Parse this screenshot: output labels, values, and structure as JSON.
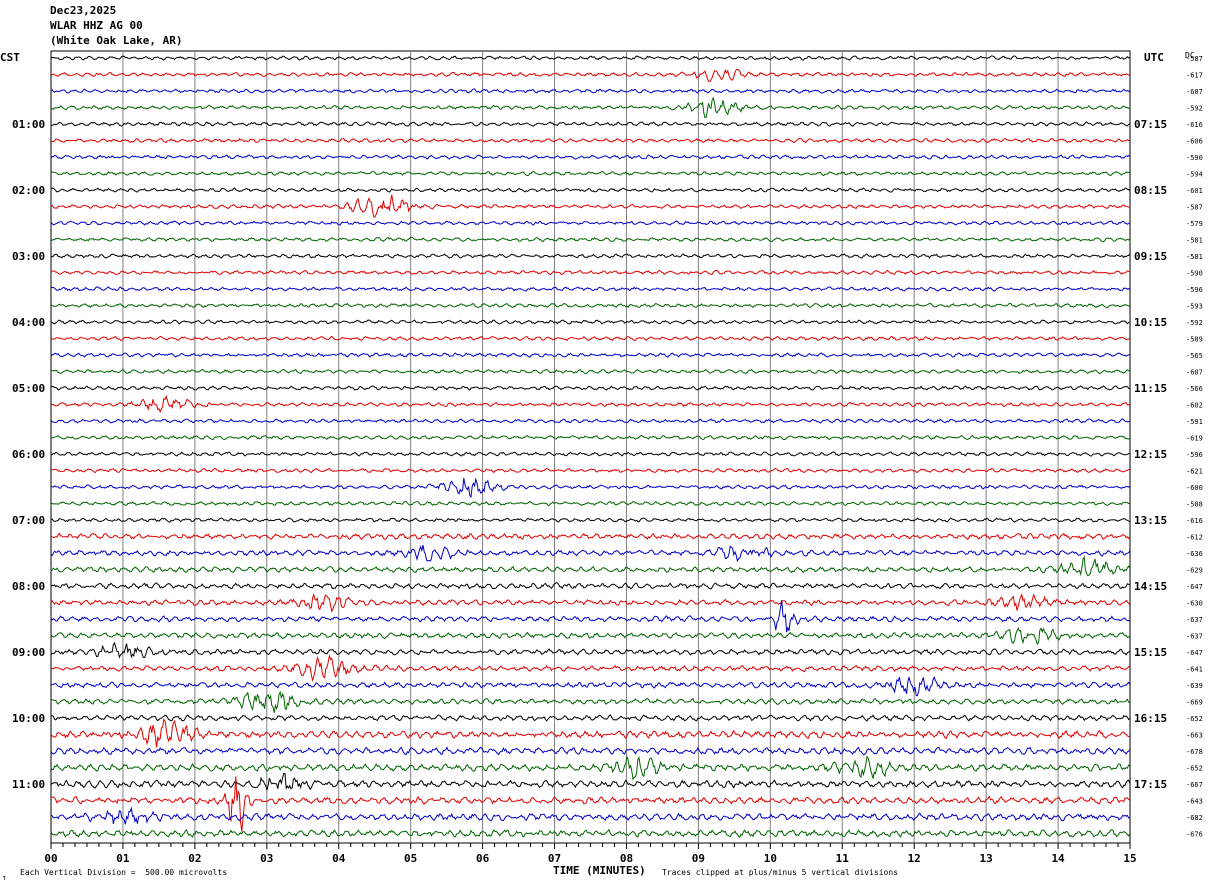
{
  "header": {
    "date": "Dec23,2025",
    "station": "WLAR HHZ AG 00",
    "location": "(White Oak Lake, AR)"
  },
  "left_axis_label": "CST",
  "right_axis_label": "UTC",
  "dc_label": "DC",
  "footer": {
    "scale_note": "Each Vertical Division =  500.00 microvolts",
    "clip_note": "Traces clipped at plus/minus 5 vertical divisions",
    "corner_mark": "↑"
  },
  "colors": {
    "black": "#000000",
    "red": "#e00000",
    "blue": "#0000c8",
    "green": "#006400",
    "grid": "#808080"
  },
  "chart_data": {
    "type": "line",
    "title": "",
    "xlabel": "TIME (MINUTES)",
    "ylabel": "",
    "x_ticks": [
      "00",
      "01",
      "02",
      "03",
      "04",
      "05",
      "06",
      "07",
      "08",
      "09",
      "10",
      "11",
      "12",
      "13",
      "14",
      "15"
    ],
    "x_range": [
      0,
      15
    ],
    "trace_color_cycle": [
      "black",
      "red",
      "blue",
      "green"
    ],
    "left_hour_labels": [
      "01:00",
      "02:00",
      "03:00",
      "04:00",
      "05:00",
      "06:00",
      "07:00",
      "08:00",
      "09:00",
      "10:00",
      "11:00"
    ],
    "right_hour_labels": [
      "07:15",
      "08:15",
      "09:15",
      "10:15",
      "11:15",
      "12:15",
      "13:15",
      "14:15",
      "15:15",
      "16:15",
      "17:15"
    ],
    "dc_offsets": [
      "-587",
      "-617",
      "-607",
      "-592",
      "-616",
      "-606",
      "-590",
      "-594",
      "-601",
      "-587",
      "-579",
      "-581",
      "-581",
      "-590",
      "-596",
      "-593",
      "-592",
      "-589",
      "-565",
      "-607",
      "-566",
      "-602",
      "-591",
      "-619",
      "-596",
      "-621",
      "-600",
      "-588",
      "-616",
      "-612",
      "-636",
      "-629",
      "-647",
      "-630",
      "-637",
      "-637",
      "-647",
      "-641",
      "-639",
      "-669",
      "-652",
      "-663",
      "-678",
      "-652",
      "-667",
      "-643",
      "-682",
      "-676"
    ],
    "events": [
      {
        "trace": 1,
        "minute": 9.3,
        "amp": 4
      },
      {
        "trace": 3,
        "minute": 9.2,
        "amp": 7
      },
      {
        "trace": 9,
        "minute": 4.6,
        "amp": 9
      },
      {
        "trace": 21,
        "minute": 1.6,
        "amp": 5
      },
      {
        "trace": 26,
        "minute": 5.8,
        "amp": 7
      },
      {
        "trace": 30,
        "minute": 5.3,
        "amp": 5
      },
      {
        "trace": 30,
        "minute": 9.6,
        "amp": 5
      },
      {
        "trace": 31,
        "minute": 14.4,
        "amp": 6
      },
      {
        "trace": 33,
        "minute": 3.8,
        "amp": 5
      },
      {
        "trace": 33,
        "minute": 13.5,
        "amp": 5
      },
      {
        "trace": 34,
        "minute": 10.2,
        "amp": 18
      },
      {
        "trace": 35,
        "minute": 13.6,
        "amp": 6
      },
      {
        "trace": 36,
        "minute": 1.0,
        "amp": 5
      },
      {
        "trace": 37,
        "minute": 3.8,
        "amp": 7
      },
      {
        "trace": 38,
        "minute": 12.0,
        "amp": 6
      },
      {
        "trace": 39,
        "minute": 3.0,
        "amp": 8
      },
      {
        "trace": 41,
        "minute": 1.6,
        "amp": 9
      },
      {
        "trace": 43,
        "minute": 8.1,
        "amp": 6
      },
      {
        "trace": 43,
        "minute": 11.3,
        "amp": 6
      },
      {
        "trace": 44,
        "minute": 3.2,
        "amp": 6
      },
      {
        "trace": 45,
        "minute": 2.6,
        "amp": 30
      },
      {
        "trace": 46,
        "minute": 1.0,
        "amp": 5
      }
    ]
  }
}
